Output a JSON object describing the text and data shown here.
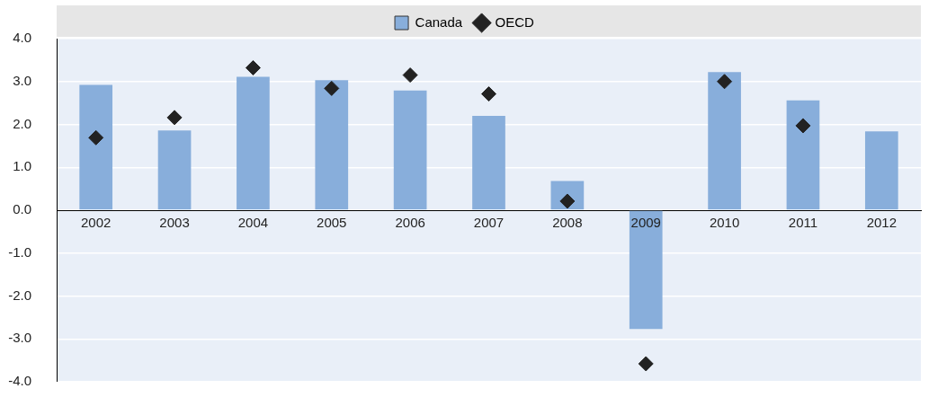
{
  "chart_data": {
    "type": "bar",
    "categories": [
      "2002",
      "2003",
      "2004",
      "2005",
      "2006",
      "2007",
      "2008",
      "2009",
      "2010",
      "2011",
      "2012"
    ],
    "series": [
      {
        "name": "Canada",
        "color": "#88aedb",
        "values": [
          2.92,
          1.86,
          3.11,
          3.03,
          2.79,
          2.2,
          0.68,
          -2.77,
          3.22,
          2.56,
          1.84
        ]
      },
      {
        "name": "OECD",
        "type": "scatter",
        "color": "#222222",
        "marker": "diamond",
        "values": [
          1.69,
          2.16,
          3.32,
          2.84,
          3.15,
          2.71,
          0.21,
          -3.58,
          3.0,
          1.97,
          null
        ]
      }
    ],
    "ylim": [
      -4,
      4
    ],
    "yticks": [
      {
        "value": -4,
        "label": "-4.0"
      },
      {
        "value": -3,
        "label": "-3.0"
      },
      {
        "value": -2,
        "label": "-2.0"
      },
      {
        "value": -1,
        "label": "-1.0"
      },
      {
        "value": 0,
        "label": "0.0"
      },
      {
        "value": 1,
        "label": "1.0"
      },
      {
        "value": 2,
        "label": "2.0"
      },
      {
        "value": 3,
        "label": "3.0"
      },
      {
        "value": 4,
        "label": "4.0"
      }
    ],
    "grid": "y",
    "legend": "top"
  }
}
